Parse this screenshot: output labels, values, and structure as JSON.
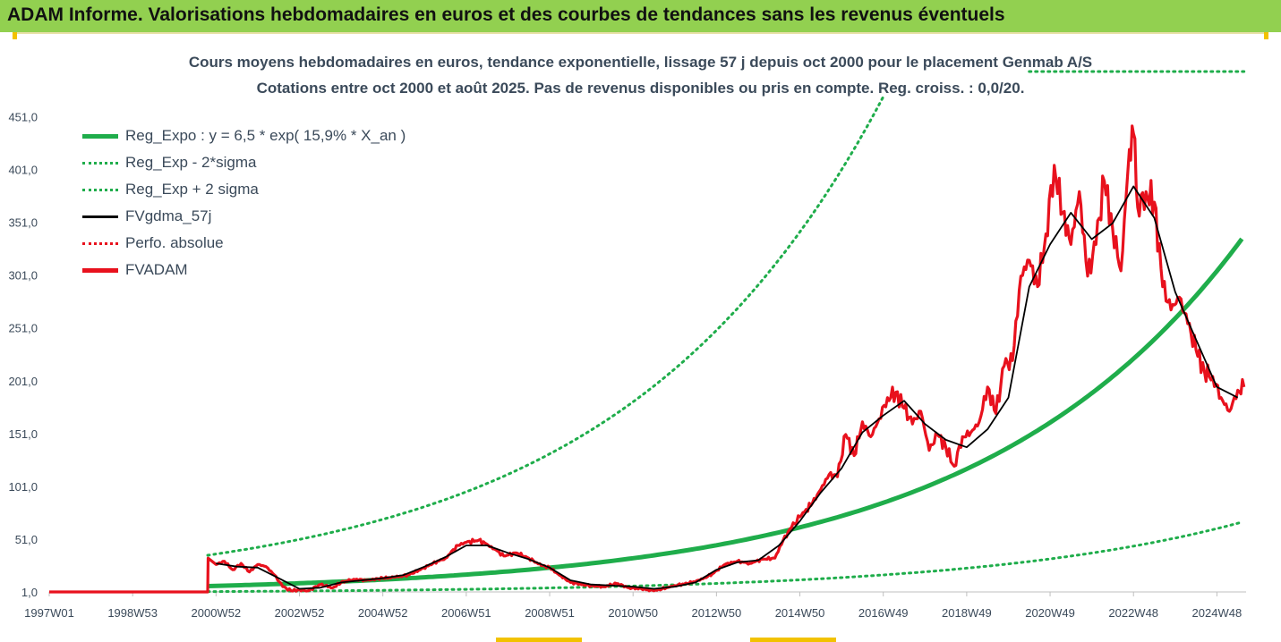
{
  "header": {
    "title": "ADAM Informe. Valorisations hebdomadaires en euros et des courbes de tendances sans les revenus éventuels"
  },
  "colors": {
    "header_bg": "#92d050",
    "trend_green": "#1fad4b",
    "price_red": "#e8111d",
    "smooth_black": "#000000",
    "corner_yellow": "#f2c200"
  },
  "chart_data": {
    "type": "line",
    "title": "Cours moyens hebdomadaires en euros, tendance exponentielle, lissage 57 j depuis oct 2000 pour le placement Genmab A/S",
    "subtitle": "Cotations entre oct 2000 et août 2025. Pas de revenus disponibles ou pris en compte. Reg. croiss. : 0,0/20.",
    "xlabel": "",
    "ylabel": "",
    "x_range": [
      1997.0,
      2025.7
    ],
    "ylim": [
      1.0,
      470.0
    ],
    "y_ticks": [
      "1,0",
      "51,0",
      "101,0",
      "151,0",
      "201,0",
      "251,0",
      "301,0",
      "351,0",
      "401,0",
      "451,0"
    ],
    "y_tick_values": [
      1,
      51,
      101,
      151,
      201,
      251,
      301,
      351,
      401,
      451
    ],
    "x_ticks": [
      "1997W01",
      "1998W53",
      "2000W52",
      "2002W52",
      "2004W52",
      "2006W51",
      "2008W51",
      "2010W50",
      "2012W50",
      "2014W50",
      "2016W49",
      "2018W49",
      "2020W49",
      "2022W48",
      "2024W48"
    ],
    "x_tick_values": [
      1997.0,
      1999.0,
      2001.0,
      2003.0,
      2005.0,
      2007.0,
      2009.0,
      2011.0,
      2013.0,
      2015.0,
      2017.0,
      2019.0,
      2021.0,
      2023.0,
      2025.0
    ],
    "grid": false,
    "legend_position": "top-left",
    "legend": [
      {
        "label": "Reg_Expo : y = 6,5 * exp( 15,9% *  X_an )",
        "color": "#1fad4b",
        "style": "solid-thick"
      },
      {
        "label": "Reg_Exp - 2*sigma",
        "color": "#1fad4b",
        "style": "dotted"
      },
      {
        "label": "Reg_Exp + 2 sigma",
        "color": "#1fad4b",
        "style": "dotted"
      },
      {
        "label": "FVgdma_57j",
        "color": "#000000",
        "style": "solid"
      },
      {
        "label": "Perfo. absolue",
        "color": "#e8111d",
        "style": "dotted"
      },
      {
        "label": "FVADAM",
        "color": "#e8111d",
        "style": "solid-thick"
      }
    ],
    "trend": {
      "a": 6.5,
      "rate": 0.159,
      "start_year": 2000.8,
      "end_year": 2025.65,
      "upper_factor": 5.5,
      "lower_factor": 0.2,
      "upper_flat_value": 500
    },
    "series": [
      {
        "name": "FVADAM",
        "x": [
          1997.0,
          2000.8,
          2000.81,
          2001.0,
          2001.2,
          2001.4,
          2001.6,
          2001.8,
          2002.0,
          2002.2,
          2002.4,
          2002.6,
          2002.8,
          2003.0,
          2003.2,
          2003.5,
          2003.8,
          2004.0,
          2004.3,
          2004.6,
          2005.0,
          2005.3,
          2005.6,
          2005.9,
          2006.2,
          2006.5,
          2006.8,
          2007.0,
          2007.3,
          2007.6,
          2007.9,
          2008.2,
          2008.5,
          2008.8,
          2009.0,
          2009.2,
          2009.5,
          2009.8,
          2010.0,
          2010.3,
          2010.6,
          2010.9,
          2011.2,
          2011.5,
          2011.8,
          2012.0,
          2012.3,
          2012.6,
          2012.9,
          2013.2,
          2013.5,
          2013.8,
          2014.1,
          2014.4,
          2014.6,
          2014.8,
          2015.0,
          2015.3,
          2015.5,
          2015.7,
          2015.9,
          2016.1,
          2016.3,
          2016.5,
          2016.7,
          2016.9,
          2017.1,
          2017.3,
          2017.5,
          2017.7,
          2017.9,
          2018.1,
          2018.3,
          2018.5,
          2018.7,
          2018.9,
          2019.1,
          2019.3,
          2019.5,
          2019.7,
          2019.9,
          2020.1,
          2020.3,
          2020.5,
          2020.7,
          2020.9,
          2021.1,
          2021.3,
          2021.5,
          2021.7,
          2021.9,
          2022.1,
          2022.3,
          2022.5,
          2022.7,
          2022.9,
          2023.0,
          2023.1,
          2023.3,
          2023.5,
          2023.7,
          2023.9,
          2024.1,
          2024.3,
          2024.5,
          2024.7,
          2024.9,
          2025.1,
          2025.3,
          2025.5,
          2025.65
        ],
        "values": [
          1.0,
          1.0,
          33,
          27,
          30,
          22,
          28,
          20,
          27,
          25,
          17,
          6,
          2,
          3,
          2,
          8,
          5,
          10,
          13,
          12,
          14,
          15,
          17,
          22,
          28,
          33,
          45,
          48,
          50,
          44,
          35,
          38,
          33,
          26,
          24,
          18,
          10,
          8,
          7,
          6,
          9,
          5,
          4,
          2,
          5,
          7,
          9,
          12,
          18,
          27,
          30,
          28,
          32,
          33,
          50,
          62,
          72,
          85,
          98,
          112,
          110,
          150,
          130,
          162,
          148,
          165,
          185,
          190,
          175,
          160,
          172,
          135,
          150,
          138,
          120,
          148,
          152,
          162,
          195,
          170,
          215,
          220,
          300,
          315,
          290,
          340,
          405,
          360,
          330,
          380,
          300,
          330,
          390,
          345,
          305,
          420,
          435,
          365,
          380,
          370,
          290,
          268,
          280,
          255,
          230,
          210,
          205,
          185,
          172,
          192,
          195
        ]
      },
      {
        "name": "FVgdma_57j",
        "x": [
          2001.0,
          2001.5,
          2002.0,
          2002.5,
          2003.0,
          2003.5,
          2004.0,
          2004.5,
          2005.0,
          2005.5,
          2006.0,
          2006.5,
          2007.0,
          2007.5,
          2008.0,
          2008.5,
          2009.0,
          2009.5,
          2010.0,
          2010.5,
          2011.0,
          2011.5,
          2012.0,
          2012.5,
          2013.0,
          2013.5,
          2014.0,
          2014.5,
          2015.0,
          2015.5,
          2016.0,
          2016.5,
          2017.0,
          2017.5,
          2018.0,
          2018.5,
          2019.0,
          2019.5,
          2020.0,
          2020.5,
          2021.0,
          2021.5,
          2022.0,
          2022.5,
          2023.0,
          2023.5,
          2024.0,
          2024.5,
          2025.0,
          2025.5
        ],
        "values": [
          28,
          25,
          24,
          14,
          4,
          5,
          10,
          12,
          14,
          17,
          25,
          34,
          45,
          45,
          38,
          32,
          24,
          12,
          8,
          7,
          6,
          4,
          6,
          10,
          22,
          29,
          31,
          45,
          68,
          95,
          118,
          152,
          168,
          182,
          160,
          145,
          138,
          155,
          185,
          290,
          330,
          360,
          335,
          350,
          385,
          355,
          285,
          240,
          195,
          185
        ]
      }
    ]
  }
}
